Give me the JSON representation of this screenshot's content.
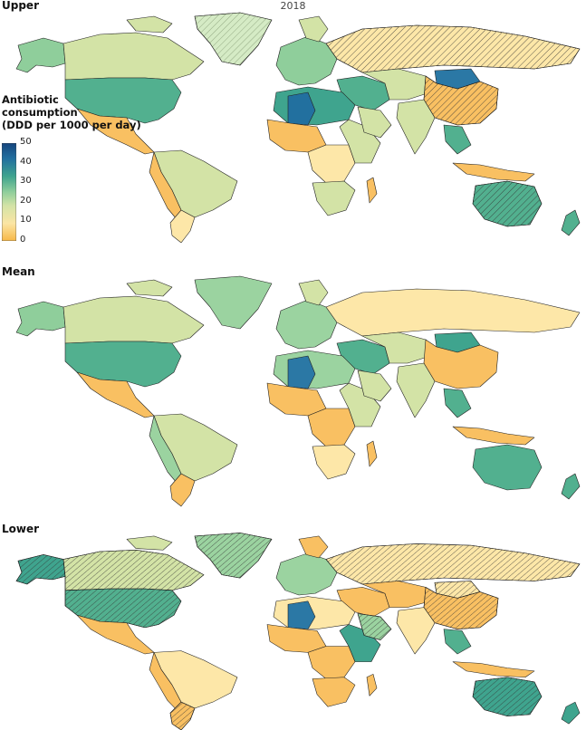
{
  "year": "2018",
  "panels": [
    {
      "label": "Upper"
    },
    {
      "label": "Mean"
    },
    {
      "label": "Lower"
    }
  ],
  "legend": {
    "title_line1": "Antibiotic",
    "title_line2": "consumption",
    "title_line3": "(DDD per 1000 per day)",
    "ticks": [
      "50",
      "40",
      "30",
      "20",
      "10",
      "0"
    ],
    "min": 0,
    "max": 50,
    "colors": [
      "#f7b847",
      "#fbe5a4",
      "#d3e3a6",
      "#8fce9b",
      "#3fa48e",
      "#22709f",
      "#16457e"
    ]
  },
  "colors": {
    "low": "#f9c062",
    "low_mid": "#fde7a8",
    "mid": "#d2e1a4",
    "mid_high": "#9bd3a0",
    "high": "#52b08f",
    "very_high": "#2b78a5",
    "hatch_stroke": "#333333",
    "no_data": "#bdbdbd"
  }
}
